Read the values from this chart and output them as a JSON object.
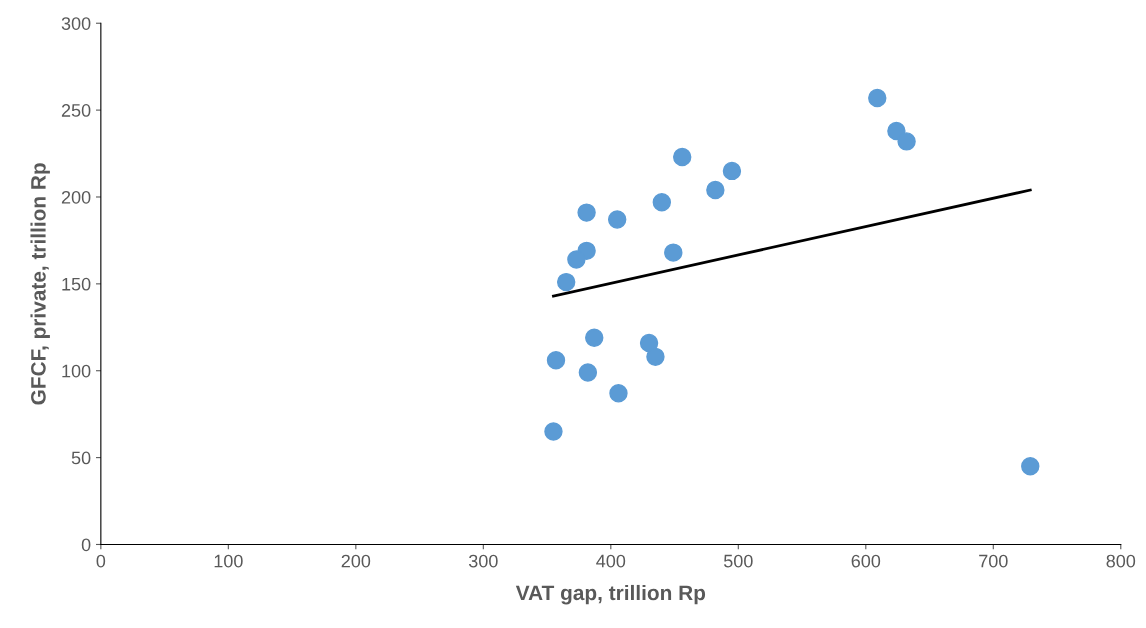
{
  "chart_data": {
    "type": "scatter",
    "xlabel": "VAT gap, trillion Rp",
    "ylabel": "GFCF, private, trillion Rp",
    "xlim": [
      0,
      800
    ],
    "xticks": [
      0,
      100,
      200,
      300,
      400,
      500,
      600,
      700,
      800
    ],
    "ylim": [
      0,
      300
    ],
    "yticks": [
      0,
      50,
      100,
      150,
      200,
      250,
      300
    ],
    "grid": false,
    "legend": false,
    "marker": "circle",
    "series": [
      {
        "color": "#5b9bd5",
        "x": [
          609,
          624,
          632,
          456,
          495,
          482,
          440,
          381,
          405,
          381,
          449,
          373,
          365,
          387,
          430,
          435,
          357,
          382,
          406,
          355,
          729
        ],
        "values": [
          257,
          238,
          232,
          223,
          215,
          204,
          197,
          191,
          187,
          169,
          168,
          164,
          151,
          119,
          116,
          108,
          106,
          99,
          87,
          65,
          45
        ]
      },
      {
        "type": "line",
        "color": "#000000",
        "marker": "none",
        "line_style": "solid",
        "x": [
          355,
          729
        ],
        "values": [
          143,
          204
        ]
      }
    ]
  }
}
